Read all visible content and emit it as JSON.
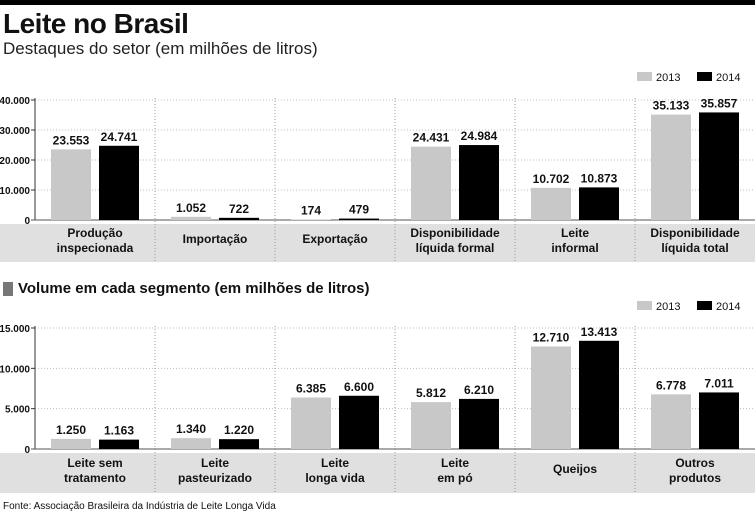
{
  "title": "Leite no Brasil",
  "subtitle": "Destaques do setor (em milhões de litros)",
  "section2_title": "Volume em cada segmento (em milhões de litros)",
  "source": "Fonte: Associação Brasileira da Indústria de Leite Longa Vida",
  "colors": {
    "y2013": "#c8c8c8",
    "y2014": "#000000",
    "band": "#e0e0e0",
    "grid": "#bfbfbf"
  },
  "chart_data": [
    {
      "type": "bar",
      "title": "Destaques do setor (em milhões de litros)",
      "categories": [
        [
          "Produção",
          "inspecionada"
        ],
        [
          "Importação"
        ],
        [
          "Exportação"
        ],
        [
          "Disponibilidade",
          "líquida formal"
        ],
        [
          "Leite",
          "informal"
        ],
        [
          "Disponibilidade",
          "líquida total"
        ]
      ],
      "series": [
        {
          "name": "2013",
          "values": [
            23553,
            1052,
            174,
            24431,
            10702,
            35133
          ],
          "labels": [
            "23.553",
            "1.052",
            "174",
            "24.431",
            "10.702",
            "35.133"
          ]
        },
        {
          "name": "2014",
          "values": [
            24741,
            722,
            479,
            24984,
            10873,
            35857
          ],
          "labels": [
            "24.741",
            "722",
            "479",
            "24.984",
            "10.873",
            "35.857"
          ]
        }
      ],
      "ylim": [
        0,
        40000
      ],
      "yticks": [
        0,
        10000,
        20000,
        30000,
        40000
      ],
      "ytick_labels": [
        "0",
        "10.000",
        "20.000",
        "30.000",
        "40.000"
      ],
      "legend": "top-right"
    },
    {
      "type": "bar",
      "title": "Volume em cada segmento (em milhões de litros)",
      "categories": [
        [
          "Leite sem",
          "tratamento"
        ],
        [
          "Leite",
          "pasteurizado"
        ],
        [
          "Leite",
          "longa vida"
        ],
        [
          "Leite",
          "em pó"
        ],
        [
          "Queijos"
        ],
        [
          "Outros",
          "produtos"
        ]
      ],
      "series": [
        {
          "name": "2013",
          "values": [
            1250,
            1340,
            6385,
            5812,
            12710,
            6778
          ],
          "labels": [
            "1.250",
            "1.340",
            "6.385",
            "5.812",
            "12.710",
            "6.778"
          ]
        },
        {
          "name": "2014",
          "values": [
            1163,
            1220,
            6600,
            6210,
            13413,
            7011
          ],
          "labels": [
            "1.163",
            "1.220",
            "6.600",
            "6.210",
            "13.413",
            "7.011"
          ]
        }
      ],
      "ylim": [
        0,
        15000
      ],
      "yticks": [
        0,
        5000,
        10000,
        15000
      ],
      "ytick_labels": [
        "0",
        "5.000",
        "10.000",
        "15.000"
      ],
      "legend": "top-right"
    }
  ]
}
